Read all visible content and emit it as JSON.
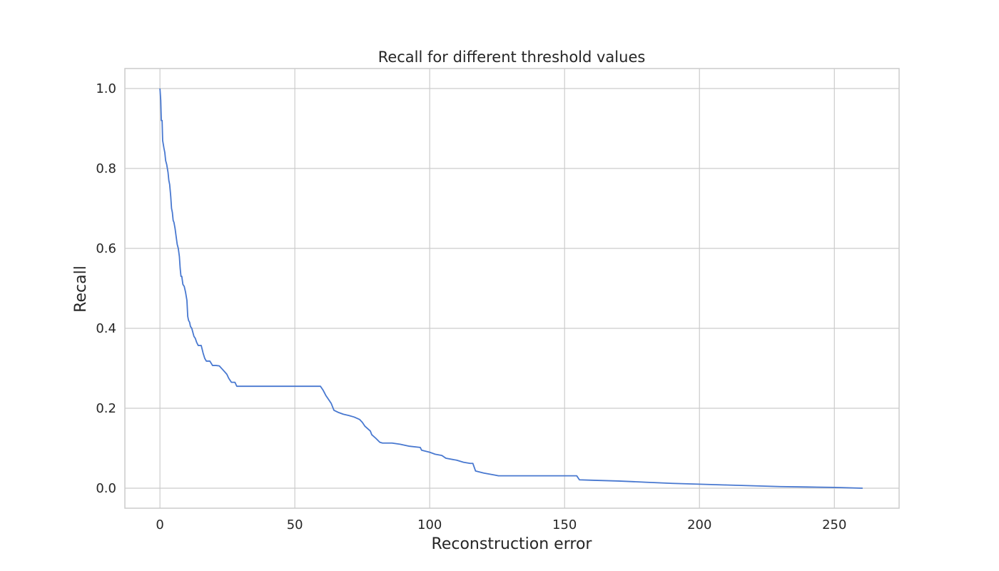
{
  "chart_data": {
    "type": "line",
    "title": "Recall for different threshold values",
    "xlabel": "Reconstruction error",
    "ylabel": "Recall",
    "xlim": [
      -13,
      274
    ],
    "ylim": [
      -0.05,
      1.05
    ],
    "xticks": [
      0,
      50,
      100,
      150,
      200,
      250
    ],
    "xtick_labels": [
      "0",
      "50",
      "100",
      "150",
      "200",
      "250"
    ],
    "yticks": [
      0.0,
      0.2,
      0.4,
      0.6,
      0.8,
      1.0
    ],
    "ytick_labels": [
      "0.0",
      "0.2",
      "0.4",
      "0.6",
      "0.8",
      "1.0"
    ],
    "grid": true,
    "line_color": "#4878d0",
    "grid_color": "#cccccc",
    "series": [
      {
        "x": [
          0.0,
          0.3,
          0.5,
          0.8,
          1.0,
          1.5,
          1.8,
          2.1,
          2.5,
          3.0,
          3.3,
          3.6,
          4.0,
          4.3,
          4.6,
          4.9,
          5.2,
          5.6,
          6.0,
          6.4,
          6.8,
          7.2,
          7.5,
          7.8,
          8.1,
          8.5,
          9.0,
          9.5,
          10.0,
          10.3,
          10.6,
          11.0,
          11.3,
          11.8,
          12.2,
          12.6,
          13.1,
          13.6,
          14.2,
          14.8,
          15.3,
          16.0,
          16.6,
          17.2,
          17.8,
          18.5,
          19.5,
          20.8,
          22.0,
          23.5,
          24.8,
          25.5,
          26.5,
          27.8,
          28.5,
          35.0,
          45.0,
          55.0,
          59.5,
          60.5,
          61.5,
          62.5,
          63.5,
          64.5,
          66.0,
          68.0,
          70.0,
          72.0,
          74.0,
          75.0,
          76.0,
          77.0,
          78.0,
          78.5,
          80.0,
          81.5,
          82.5,
          86.0,
          89.0,
          92.5,
          96.5,
          97.0,
          100.0,
          102.0,
          104.5,
          106.0,
          110.0,
          112.5,
          115.0,
          116.0,
          117.0,
          120.0,
          124.0,
          125.5,
          130.0,
          140.0,
          150.0,
          154.5,
          155.5,
          160.0,
          170.0,
          180.0,
          190.0,
          200.0,
          210.0,
          220.0,
          230.0,
          240.0,
          250.0,
          260.5
        ],
        "values": [
          1.0,
          0.97,
          0.92,
          0.92,
          0.87,
          0.85,
          0.84,
          0.82,
          0.81,
          0.79,
          0.77,
          0.76,
          0.73,
          0.7,
          0.69,
          0.67,
          0.665,
          0.65,
          0.63,
          0.61,
          0.6,
          0.58,
          0.55,
          0.53,
          0.53,
          0.51,
          0.505,
          0.49,
          0.47,
          0.43,
          0.42,
          0.415,
          0.405,
          0.4,
          0.39,
          0.38,
          0.375,
          0.365,
          0.357,
          0.357,
          0.357,
          0.338,
          0.325,
          0.318,
          0.318,
          0.318,
          0.307,
          0.307,
          0.306,
          0.295,
          0.285,
          0.275,
          0.265,
          0.265,
          0.255,
          0.255,
          0.255,
          0.255,
          0.255,
          0.245,
          0.232,
          0.222,
          0.212,
          0.195,
          0.19,
          0.185,
          0.182,
          0.178,
          0.172,
          0.165,
          0.155,
          0.149,
          0.143,
          0.134,
          0.125,
          0.115,
          0.113,
          0.113,
          0.11,
          0.105,
          0.102,
          0.095,
          0.09,
          0.085,
          0.082,
          0.075,
          0.07,
          0.065,
          0.062,
          0.062,
          0.043,
          0.038,
          0.033,
          0.031,
          0.031,
          0.031,
          0.031,
          0.031,
          0.021,
          0.02,
          0.018,
          0.015,
          0.012,
          0.01,
          0.008,
          0.006,
          0.004,
          0.003,
          0.002,
          0.0
        ]
      }
    ]
  }
}
